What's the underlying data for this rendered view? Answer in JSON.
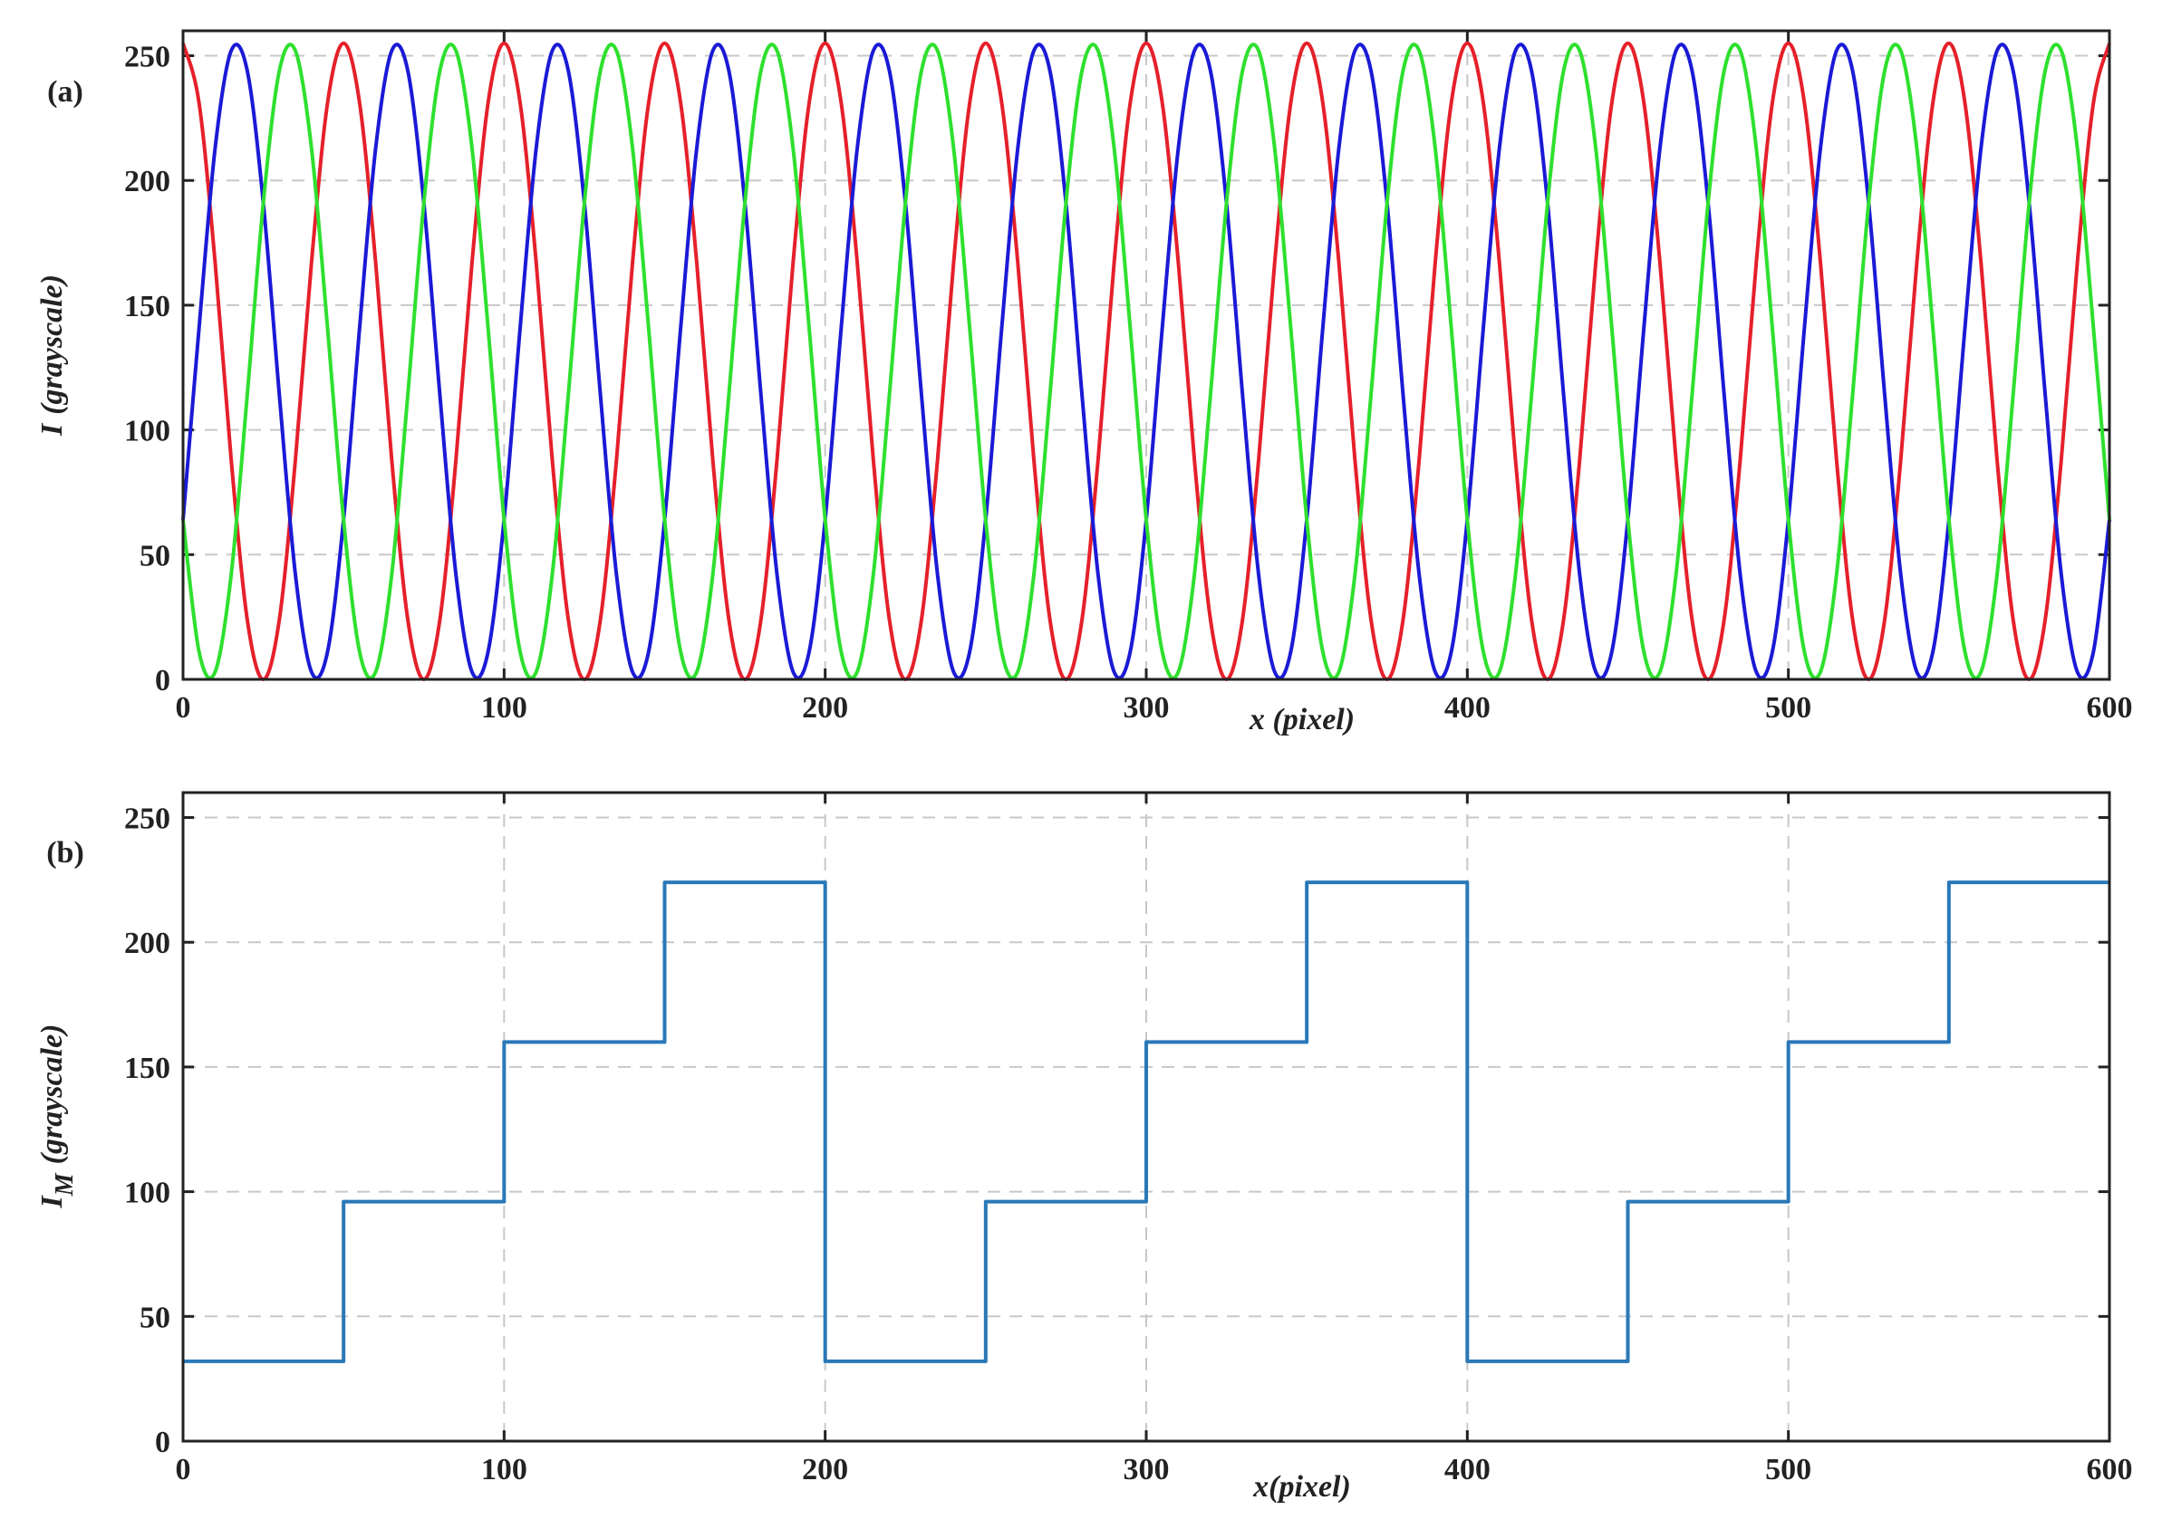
{
  "chart_data": [
    {
      "type": "line",
      "panel_label": "(a)",
      "xlabel": "x (pixel)",
      "ylabel": {
        "main": "I",
        "rest": "(grayscale)"
      },
      "xlim": [
        0,
        600
      ],
      "ylim": [
        0,
        260
      ],
      "xticks": [
        0,
        100,
        200,
        300,
        400,
        500,
        600
      ],
      "yticks": [
        0,
        50,
        100,
        150,
        200,
        250
      ],
      "grid": true,
      "x": [
        0,
        5,
        10,
        15,
        20,
        25,
        30,
        35,
        40,
        45,
        50,
        55,
        60,
        65,
        70,
        75,
        80,
        85,
        90,
        95,
        100,
        105,
        110,
        115,
        120,
        125,
        130,
        135,
        140,
        145,
        150,
        155,
        160,
        165,
        170,
        175,
        180,
        185,
        190,
        195,
        200,
        205,
        210,
        215,
        220,
        225,
        230,
        235,
        240,
        245,
        250,
        255,
        260,
        265,
        270,
        275,
        280,
        285,
        290,
        295,
        300,
        305,
        310,
        315,
        320,
        325,
        330,
        335,
        340,
        345,
        350,
        355,
        360,
        365,
        370,
        375,
        380,
        385,
        390,
        395,
        400,
        405,
        410,
        415,
        420,
        425,
        430,
        435,
        440,
        445,
        450,
        455,
        460,
        465,
        470,
        475,
        480,
        485,
        490,
        495,
        500,
        505,
        510,
        515,
        520,
        525,
        530,
        535,
        540,
        545,
        550,
        555,
        560,
        565,
        570,
        575,
        580,
        585,
        590,
        595,
        600
      ],
      "series": [
        {
          "color": "#e5202a",
          "values": [
            255,
            231,
            167,
            88,
            24,
            0,
            24,
            88,
            167,
            231,
            255,
            231,
            167,
            88,
            24,
            0,
            24,
            88,
            167,
            231,
            255,
            231,
            167,
            88,
            24,
            0,
            24,
            88,
            167,
            231,
            255,
            231,
            167,
            88,
            24,
            0,
            24,
            88,
            167,
            231,
            255,
            231,
            167,
            88,
            24,
            0,
            24,
            88,
            167,
            231,
            255,
            231,
            167,
            88,
            24,
            0,
            24,
            88,
            167,
            231,
            255,
            231,
            167,
            88,
            24,
            0,
            24,
            88,
            167,
            231,
            255,
            231,
            167,
            88,
            24,
            0,
            24,
            88,
            167,
            231,
            255,
            231,
            167,
            88,
            24,
            0,
            24,
            88,
            167,
            231,
            255,
            231,
            167,
            88,
            24,
            0,
            24,
            88,
            167,
            231,
            255,
            231,
            167,
            88,
            24,
            0,
            24,
            88,
            167,
            231,
            255,
            231,
            167,
            88,
            24,
            0,
            24,
            88,
            167,
            231,
            255
          ]
        },
        {
          "color": "#1a1ad6",
          "values": [
            64,
            141,
            213,
            252,
            244,
            191,
            114,
            42,
            3,
            11,
            64,
            141,
            213,
            252,
            244,
            191,
            114,
            42,
            3,
            11,
            64,
            141,
            213,
            252,
            244,
            191,
            114,
            42,
            3,
            11,
            64,
            141,
            213,
            252,
            244,
            191,
            114,
            42,
            3,
            11,
            64,
            141,
            213,
            252,
            244,
            191,
            114,
            42,
            3,
            11,
            64,
            141,
            213,
            252,
            244,
            191,
            114,
            42,
            3,
            11,
            64,
            141,
            213,
            252,
            244,
            191,
            114,
            42,
            3,
            11,
            64,
            141,
            213,
            252,
            244,
            191,
            114,
            42,
            3,
            11,
            64,
            141,
            213,
            252,
            244,
            191,
            114,
            42,
            3,
            11,
            64,
            141,
            213,
            252,
            244,
            191,
            114,
            42,
            3,
            11,
            64,
            141,
            213,
            252,
            244,
            191,
            114,
            42,
            3,
            11,
            64,
            141,
            213,
            252,
            244,
            191,
            114,
            42,
            3,
            11,
            64
          ]
        },
        {
          "color": "#2ee02e",
          "values": [
            64,
            11,
            3,
            42,
            114,
            191,
            244,
            252,
            213,
            141,
            64,
            11,
            3,
            42,
            114,
            191,
            244,
            252,
            213,
            141,
            64,
            11,
            3,
            42,
            114,
            191,
            244,
            252,
            213,
            141,
            64,
            11,
            3,
            42,
            114,
            191,
            244,
            252,
            213,
            141,
            64,
            11,
            3,
            42,
            114,
            191,
            244,
            252,
            213,
            141,
            64,
            11,
            3,
            42,
            114,
            191,
            244,
            252,
            213,
            141,
            64,
            11,
            3,
            42,
            114,
            191,
            244,
            252,
            213,
            141,
            64,
            11,
            3,
            42,
            114,
            191,
            244,
            252,
            213,
            141,
            64,
            11,
            3,
            42,
            114,
            191,
            244,
            252,
            213,
            141,
            64,
            11,
            3,
            42,
            114,
            191,
            244,
            252,
            213,
            141,
            64,
            11,
            3,
            42,
            114,
            191,
            244,
            252,
            213,
            141,
            64,
            11,
            3,
            42,
            114,
            191,
            244,
            252,
            213,
            141,
            64
          ]
        }
      ]
    },
    {
      "type": "line",
      "panel_label": "(b)",
      "xlabel": "x(pixel)",
      "ylabel": {
        "main": "I",
        "sub": "M",
        "rest": "(grayscale)"
      },
      "xlim": [
        0,
        600
      ],
      "ylim": [
        0,
        260
      ],
      "xticks": [
        0,
        100,
        200,
        300,
        400,
        500,
        600
      ],
      "yticks": [
        0,
        50,
        100,
        150,
        200,
        250
      ],
      "grid": true,
      "x": [
        0,
        50,
        50,
        100,
        100,
        150,
        150,
        200,
        200,
        250,
        250,
        300,
        300,
        350,
        350,
        400,
        400,
        450,
        450,
        500,
        500,
        550,
        550,
        600
      ],
      "series": [
        {
          "color": "#2a78b8",
          "values": [
            32,
            32,
            96,
            96,
            160,
            160,
            224,
            224,
            32,
            32,
            96,
            96,
            160,
            160,
            224,
            224,
            32,
            32,
            96,
            96,
            160,
            160,
            224,
            224
          ]
        }
      ]
    }
  ]
}
